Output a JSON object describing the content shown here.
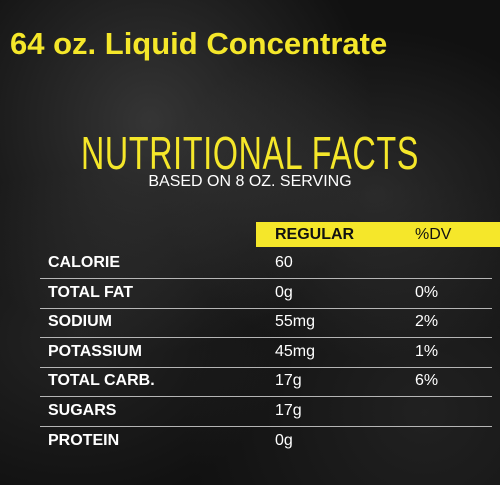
{
  "header": {
    "title": "64 oz. Liquid Concentrate"
  },
  "panel": {
    "title": "NUTRITIONAL FACTS",
    "subtitle": "BASED ON 8 OZ. SERVING"
  },
  "table": {
    "columns": [
      "REGULAR",
      "%DV"
    ],
    "rows": [
      [
        "CALORIE",
        "60"
      ],
      [
        "TOTAL FAT",
        "0g",
        "0%"
      ],
      [
        "SODIUM",
        "55mg",
        "2%"
      ],
      [
        "POTASSIUM",
        "45mg",
        "1%"
      ],
      [
        "TOTAL CARB.",
        "17g",
        "6%"
      ],
      [
        "SUGARS",
        "17g"
      ],
      [
        "PROTEIN",
        "0g"
      ]
    ]
  }
}
